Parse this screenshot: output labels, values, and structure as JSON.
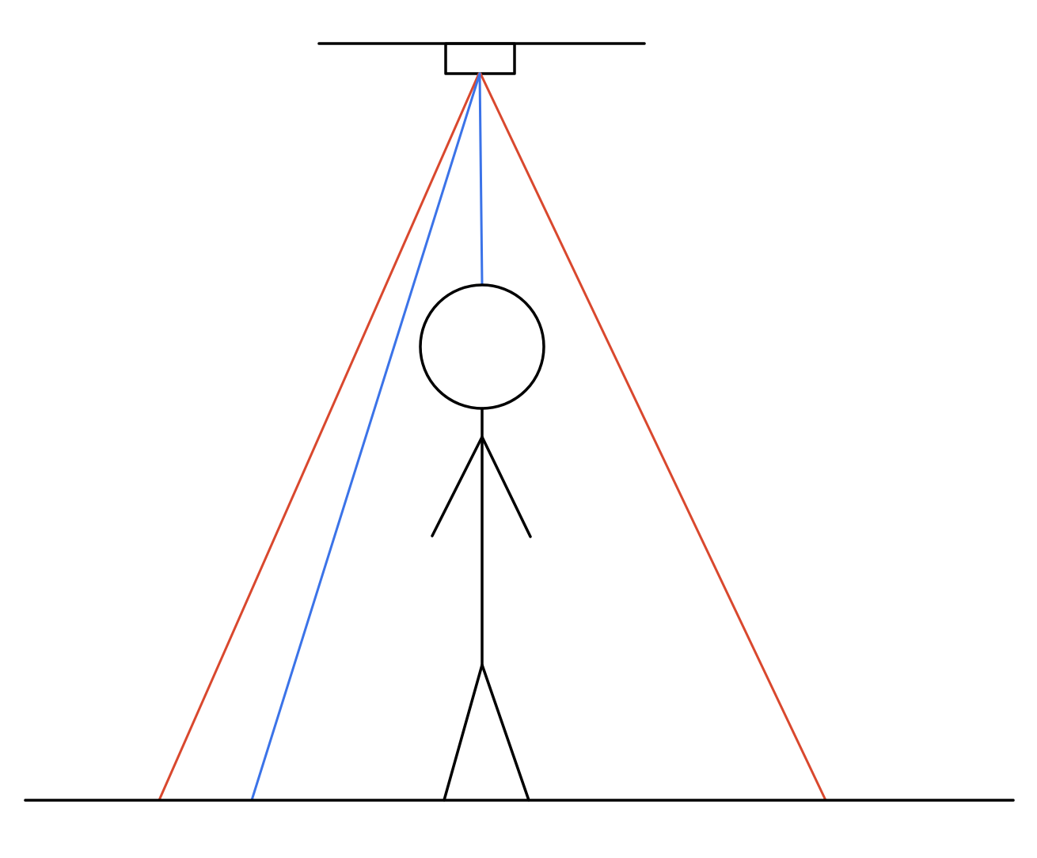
{
  "diagram": {
    "title": "",
    "colors": {
      "outline": "#000000",
      "field_of_view_edges": "#d9482e",
      "sight_lines": "#3b73e8",
      "background": "#ffffff"
    },
    "elements": [
      "ceiling-line",
      "ceiling-sensor-box",
      "floor-line",
      "stick-figure",
      "field-of-view-left-edge",
      "field-of-view-right-edge",
      "sight-line-to-head",
      "sight-line-to-floor"
    ]
  }
}
